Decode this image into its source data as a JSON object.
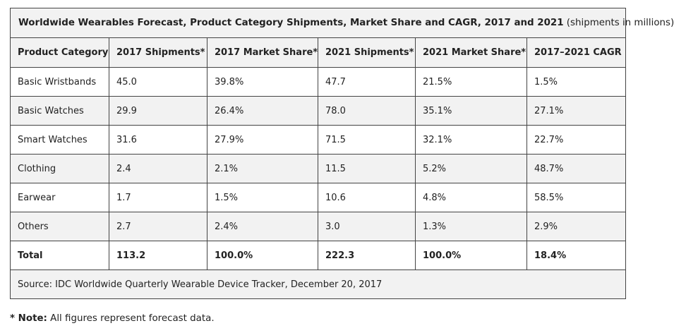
{
  "table": {
    "title_bold": "Worldwide Wearables Forecast, Product Category Shipments, Market Share and CAGR, 2017 and 2021",
    "title_suffix": " (shipments in millions)",
    "headers": [
      "Product Category",
      "2017 Shipments*",
      "2017 Market Share*",
      "2021 Shipments*",
      "2021 Market Share*",
      "2017–2021 CAGR"
    ],
    "rows": [
      [
        "Basic Wristbands",
        "45.0",
        "39.8%",
        "47.7",
        "21.5%",
        "1.5%"
      ],
      [
        "Basic Watches",
        "29.9",
        "26.4%",
        "78.0",
        "35.1%",
        "27.1%"
      ],
      [
        "Smart Watches",
        "31.6",
        "27.9%",
        "71.5",
        "32.1%",
        "22.7%"
      ],
      [
        "Clothing",
        "2.4",
        "2.1%",
        "11.5",
        "5.2%",
        "48.7%"
      ],
      [
        "Earwear",
        "1.7",
        "1.5%",
        "10.6",
        "4.8%",
        "58.5%"
      ],
      [
        "Others",
        "2.7",
        "2.4%",
        "3.0",
        "1.3%",
        "2.9%"
      ]
    ],
    "total": [
      "Total",
      "113.2",
      "100.0%",
      "222.3",
      "100.0%",
      "18.4%"
    ],
    "source": "Source: IDC Worldwide Quarterly Wearable Device Tracker, December 20, 2017"
  },
  "note": {
    "label": "* Note:",
    "text": " All figures represent forecast data."
  },
  "chart_data": {
    "type": "table",
    "title": "Worldwide Wearables Forecast, Product Category Shipments, Market Share and CAGR, 2017 and 2021 (shipments in millions)",
    "columns": [
      "Product Category",
      "2017 Shipments*",
      "2017 Market Share*",
      "2021 Shipments*",
      "2021 Market Share*",
      "2017–2021 CAGR"
    ],
    "categories": [
      "Basic Wristbands",
      "Basic Watches",
      "Smart Watches",
      "Clothing",
      "Earwear",
      "Others",
      "Total"
    ],
    "series": [
      {
        "name": "2017 Shipments*",
        "values": [
          45.0,
          29.9,
          31.6,
          2.4,
          1.7,
          2.7,
          113.2
        ]
      },
      {
        "name": "2017 Market Share*",
        "values": [
          39.8,
          26.4,
          27.9,
          2.1,
          1.5,
          2.4,
          100.0
        ]
      },
      {
        "name": "2021 Shipments*",
        "values": [
          47.7,
          78.0,
          71.5,
          11.5,
          10.6,
          3.0,
          222.3
        ]
      },
      {
        "name": "2021 Market Share*",
        "values": [
          21.5,
          35.1,
          32.1,
          5.2,
          4.8,
          1.3,
          100.0
        ]
      },
      {
        "name": "2017–2021 CAGR",
        "values": [
          1.5,
          27.1,
          22.7,
          48.7,
          58.5,
          2.9,
          18.4
        ]
      }
    ]
  }
}
